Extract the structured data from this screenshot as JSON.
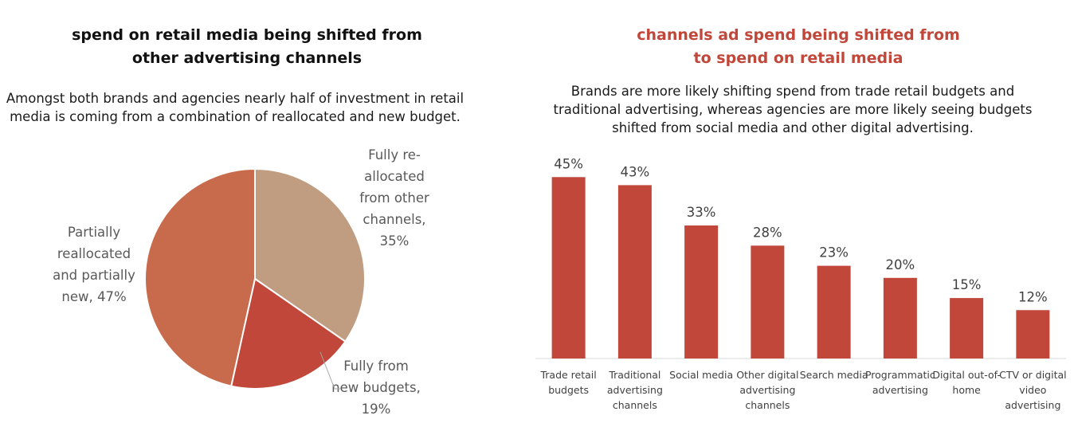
{
  "left_chart": {
    "title_lines": [
      "spend on retail media being shifted from",
      "other advertising channels"
    ],
    "subtitle_lines": [
      "Amongst both brands and agencies nearly half of investment in retail",
      "media is coming from a combination of reallocated and new budget."
    ]
  },
  "right_chart": {
    "title_lines": [
      "channels ad spend being shifted from",
      "to spend on retail media"
    ],
    "subtitle_lines": [
      "Brands are more likely shifting spend from trade retail budgets and",
      "traditional advertising, whereas agencies are more likely seeing budgets",
      "shifted from social media and other digital advertising."
    ]
  },
  "chart_data": [
    {
      "type": "pie",
      "title": "spend on retail media being shifted from other advertising channels",
      "slices": [
        {
          "label_lines": [
            "Fully re-",
            "allocated",
            "from other",
            "channels,",
            "35%"
          ],
          "value": 35,
          "color": "#c09c80"
        },
        {
          "label_lines": [
            "Fully from",
            "new budgets,",
            "19%"
          ],
          "value": 19,
          "color": "#c0473a"
        },
        {
          "label_lines": [
            "Partially",
            "reallocated",
            "and partially",
            "new, 47%"
          ],
          "value": 47,
          "color": "#c76b4c"
        }
      ]
    },
    {
      "type": "bar",
      "title": "channels ad spend being shifted from to spend on retail media",
      "color": "#c0473a",
      "categories": [
        [
          "Trade retail",
          "budgets"
        ],
        [
          "Traditional",
          "advertising",
          "channels"
        ],
        [
          "Social media"
        ],
        [
          "Other digital",
          "advertising",
          "channels"
        ],
        [
          "Search media"
        ],
        [
          "Programmatic",
          "advertising"
        ],
        [
          "Digital out-of-",
          "home"
        ],
        [
          "CTV or digital",
          "video",
          "advertising"
        ]
      ],
      "values": [
        45,
        43,
        33,
        28,
        23,
        20,
        15,
        12
      ],
      "value_labels": [
        "45%",
        "43%",
        "33%",
        "28%",
        "23%",
        "20%",
        "15%",
        "12%"
      ],
      "ylim": [
        0,
        50
      ],
      "grid": false
    }
  ]
}
